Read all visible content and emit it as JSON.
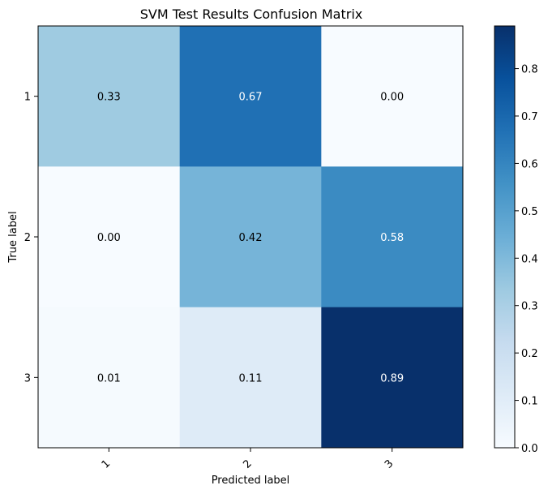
{
  "chart_data": {
    "type": "heatmap",
    "title": "SVM Test Results Confusion Matrix",
    "xlabel": "Predicted label",
    "ylabel": "True label",
    "x_categories": [
      "1",
      "2",
      "3"
    ],
    "y_categories": [
      "1",
      "2",
      "3"
    ],
    "values": [
      [
        0.33,
        0.67,
        0.0
      ],
      [
        0.0,
        0.42,
        0.58
      ],
      [
        0.01,
        0.11,
        0.89
      ]
    ],
    "cell_labels": [
      [
        "0.33",
        "0.67",
        "0.00"
      ],
      [
        "0.00",
        "0.42",
        "0.58"
      ],
      [
        "0.01",
        "0.11",
        "0.89"
      ]
    ],
    "colormap": "Blues",
    "colorbar": {
      "range": [
        0.0,
        0.89
      ],
      "ticks": [
        0.0,
        0.1,
        0.2,
        0.3,
        0.4,
        0.5,
        0.6,
        0.7,
        0.8
      ],
      "tick_labels": [
        "0.0",
        "0.1",
        "0.2",
        "0.3",
        "0.4",
        "0.5",
        "0.6",
        "0.7",
        "0.8"
      ]
    },
    "x_tick_rotation_deg": 45,
    "grid": false
  },
  "colors": {
    "text_light": "#ffffff",
    "text_dark": "#000000",
    "blues_stops": [
      "#f7fbff",
      "#deebf7",
      "#c6dbef",
      "#9ecae1",
      "#6baed6",
      "#4292c6",
      "#2171b5",
      "#08519c",
      "#08306b"
    ]
  }
}
